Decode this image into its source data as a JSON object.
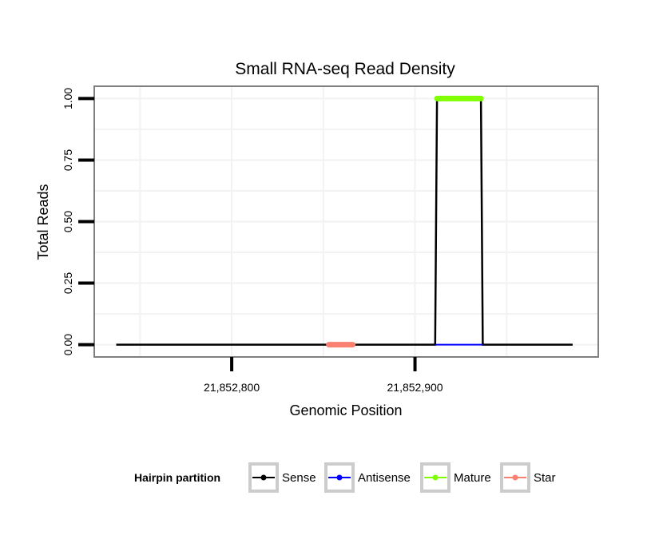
{
  "chart_data": {
    "type": "line",
    "title": "Small RNA-seq Read Density",
    "xlabel": "Genomic Position",
    "ylabel": "Total Reads",
    "xlim": [
      21852725,
      21853000
    ],
    "ylim": [
      -0.05,
      1.05
    ],
    "x_ticks": [
      21852800,
      21852900
    ],
    "x_tick_labels": [
      "21,852,800",
      "21,852,900"
    ],
    "y_ticks": [
      0,
      0.25,
      0.5,
      0.75,
      1.0
    ],
    "y_tick_labels": [
      "0.00",
      "0.25",
      "0.50",
      "0.75",
      "1.00"
    ],
    "grid": true,
    "legend": {
      "title": "Hairpin partition",
      "position": "bottom",
      "entries": [
        {
          "label": "Sense",
          "color": "#000000"
        },
        {
          "label": "Antisense",
          "color": "#0000ff"
        },
        {
          "label": "Mature",
          "color": "#7fff00"
        },
        {
          "label": "Star",
          "color": "#fa8072"
        }
      ]
    },
    "series": [
      {
        "name": "Sense",
        "color": "#000000",
        "x": [
          21852737,
          21852911,
          21852912,
          21852936,
          21852937,
          21852986
        ],
        "y": [
          0,
          0,
          1,
          1,
          0,
          0
        ]
      },
      {
        "name": "Antisense",
        "color": "#0000ff",
        "x": [
          21852911,
          21852937
        ],
        "y": [
          0,
          0
        ]
      },
      {
        "name": "Mature",
        "color": "#7fff00",
        "x": [
          21852912,
          21852936
        ],
        "y": [
          1,
          1
        ]
      },
      {
        "name": "Star",
        "color": "#fa8072",
        "x": [
          21852853,
          21852866
        ],
        "y": [
          0,
          0
        ]
      }
    ]
  }
}
